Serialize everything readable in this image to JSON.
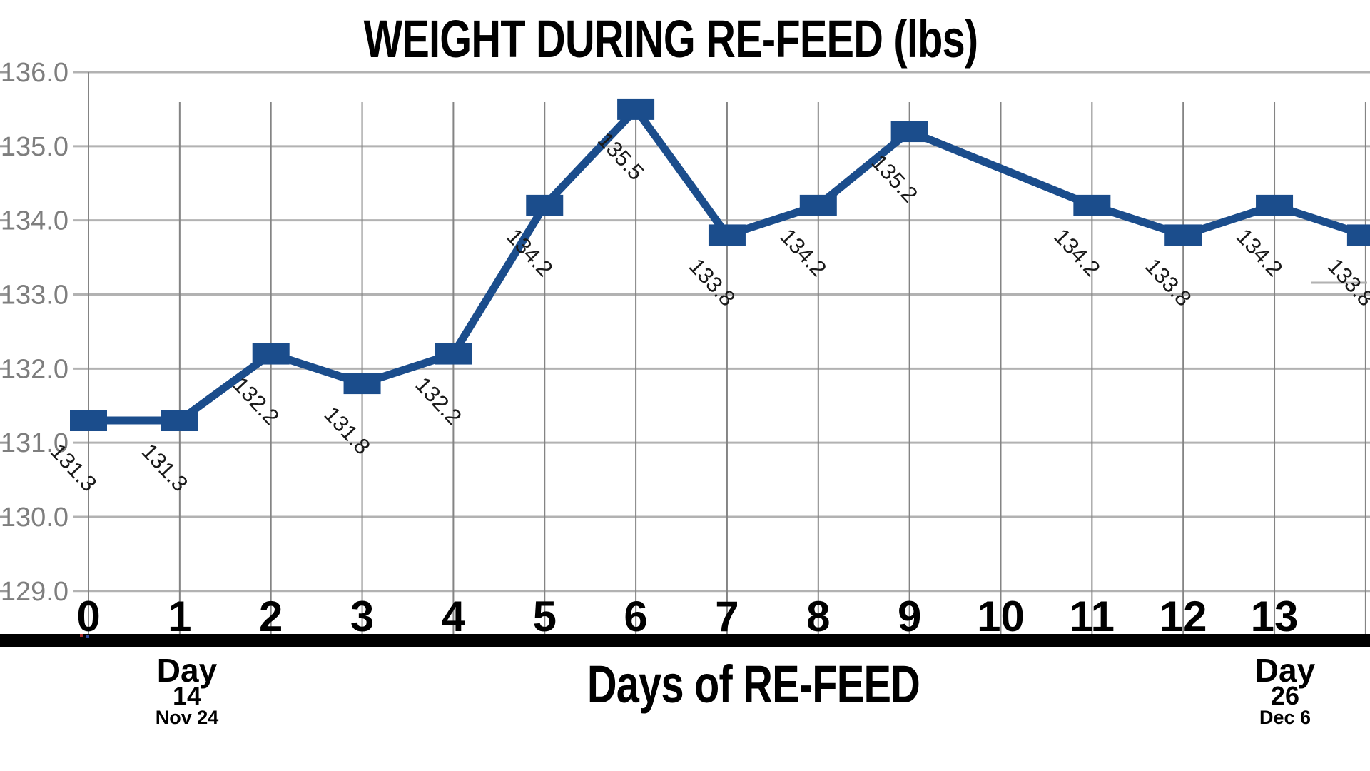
{
  "title": "WEIGHT DURING RE-FEED (lbs)",
  "x_axis_title": "Days of RE-FEED",
  "annotation_left": {
    "line1": "Day",
    "line2": "14",
    "line3": "Nov 24"
  },
  "annotation_right": {
    "line1": "Day",
    "line2": "26",
    "line3": "Dec 6"
  },
  "chart_data": {
    "type": "line",
    "title": "WEIGHT DURING RE-FEED (lbs)",
    "xlabel": "Days of RE-FEED",
    "ylabel": "",
    "ylim": [
      129.0,
      136.0
    ],
    "x_range": [
      0,
      14
    ],
    "grid": true,
    "y_tick_labels": [
      "136.0",
      "135.0",
      "134.0",
      "133.0",
      "132.0",
      "131.0",
      "130.0",
      "129.0"
    ],
    "x_tick_labels": [
      "0",
      "1",
      "2",
      "3",
      "4",
      "5",
      "6",
      "7",
      "8",
      "9",
      "10",
      "11",
      "12",
      "13"
    ],
    "missing_days": [
      10
    ],
    "points": [
      {
        "day": 0,
        "value": 131.3,
        "label": "131.3"
      },
      {
        "day": 1,
        "value": 131.3,
        "label": "131.3"
      },
      {
        "day": 2,
        "value": 132.2,
        "label": "132.2"
      },
      {
        "day": 3,
        "value": 131.8,
        "label": "131.8"
      },
      {
        "day": 4,
        "value": 132.2,
        "label": "132.2"
      },
      {
        "day": 5,
        "value": 134.2,
        "label": "134.2"
      },
      {
        "day": 6,
        "value": 135.5,
        "label": "135.5"
      },
      {
        "day": 7,
        "value": 133.8,
        "label": "133.8"
      },
      {
        "day": 8,
        "value": 134.2,
        "label": "134.2"
      },
      {
        "day": 9,
        "value": 135.2,
        "label": "135.2"
      },
      {
        "day": 11,
        "value": 134.2,
        "label": "134.2"
      },
      {
        "day": 12,
        "value": 133.8,
        "label": "133.8"
      },
      {
        "day": 13,
        "value": 134.2,
        "label": "134.2"
      },
      {
        "day": 14,
        "value": 133.8,
        "label": "133.8"
      }
    ],
    "colors": {
      "series": "#1b4d8c",
      "h_grid": "#b2b2b2",
      "v_grid": "#848484",
      "y_tick_text": "#7e7e7e",
      "x_tick_text": "#000000",
      "data_label_text": "#1a1a1a",
      "axis_bar": "#000000"
    }
  }
}
